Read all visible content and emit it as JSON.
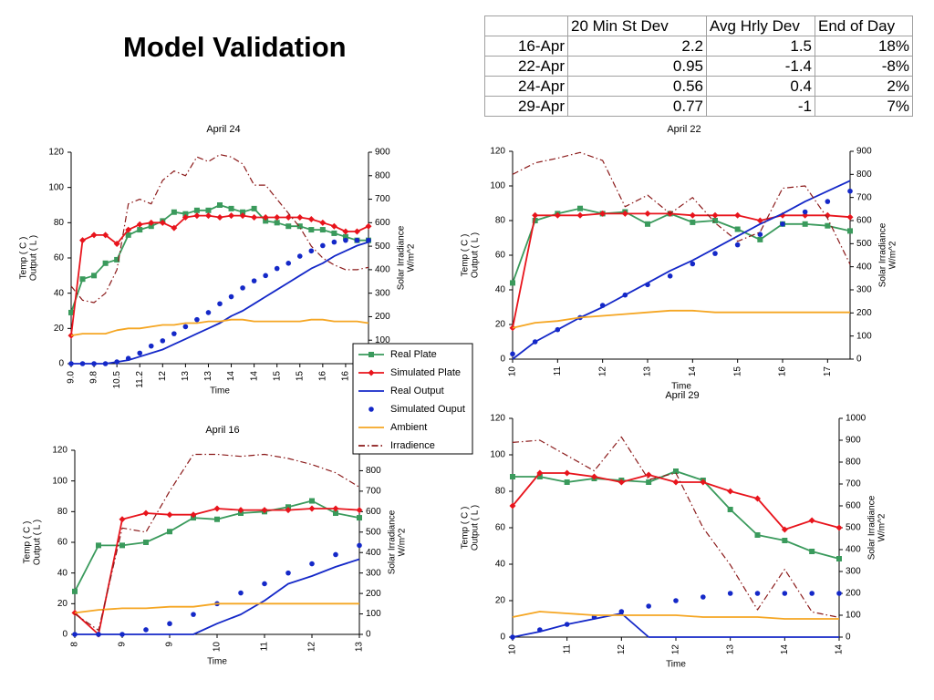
{
  "title": "Model Validation",
  "table": {
    "header": [
      "20 Min St Dev",
      "Avg Hrly Dev",
      "End of Day"
    ],
    "rows": [
      [
        "16-Apr",
        "2.2",
        "1.5",
        "18%"
      ],
      [
        "22-Apr",
        "0.95",
        "-1.4",
        "-8%"
      ],
      [
        "24-Apr",
        "0.56",
        "0.4",
        "2%"
      ],
      [
        "29-Apr",
        "0.77",
        "-1",
        "7%"
      ]
    ]
  },
  "legend": {
    "items": [
      {
        "name": "Real Plate",
        "color": "#3a9a5c",
        "marker": "square",
        "line": "solid"
      },
      {
        "name": "Simulated Plate",
        "color": "#e8141c",
        "marker": "diamond",
        "line": "solid"
      },
      {
        "name": "Real Output",
        "color": "#1428c8",
        "marker": "none",
        "line": "solid"
      },
      {
        "name": "Simulated Ouput",
        "color": "#1428c8",
        "marker": "dot",
        "line": "none"
      },
      {
        "name": "Ambient",
        "color": "#f5a623",
        "marker": "none",
        "line": "solid"
      },
      {
        "name": "Irradience",
        "color": "#8b1a1a",
        "marker": "none",
        "line": "dashdot"
      }
    ]
  },
  "chart_data": [
    {
      "type": "line",
      "title": "April 24",
      "xlabel": "Time",
      "ylabel": [
        "Temp ( C )",
        "Output ( L )"
      ],
      "y2label": [
        "Solar Irradiance",
        "W/m^2"
      ],
      "categories": [
        "9.0",
        null,
        "9.8",
        null,
        "10.5",
        null,
        "11.2",
        null,
        "12",
        null,
        "13",
        null,
        "13",
        null,
        "14",
        null,
        "14",
        null,
        "15",
        null,
        "15",
        null,
        "16",
        null,
        "16",
        null,
        null
      ],
      "ylim": [
        0,
        120
      ],
      "yticks": [
        0,
        20,
        40,
        60,
        80,
        100,
        120
      ],
      "y2lim": [
        0,
        900
      ],
      "y2ticks": [
        100,
        200,
        300,
        400,
        500,
        600,
        700,
        800,
        900
      ],
      "series": [
        {
          "values": [
            29,
            48,
            50,
            57,
            59,
            73,
            76,
            78,
            81,
            86,
            85,
            87,
            87,
            90,
            88,
            86,
            88,
            81,
            80,
            78,
            78,
            76,
            76,
            74,
            72,
            70,
            70
          ]
        },
        {
          "values": [
            16,
            70,
            73,
            73,
            68,
            76,
            79,
            80,
            80,
            77,
            83,
            84,
            84,
            83,
            84,
            84,
            83,
            83,
            83,
            83,
            83,
            82,
            80,
            78,
            75,
            75,
            78
          ]
        },
        {
          "values": [
            0,
            0,
            0,
            0,
            1,
            2,
            4,
            6,
            8,
            11,
            14,
            17,
            20,
            23,
            27,
            30,
            34,
            38,
            42,
            46,
            50,
            54,
            57,
            61,
            64,
            67,
            69
          ]
        },
        {
          "values": [
            0,
            0,
            0,
            0,
            1,
            3,
            6,
            10,
            13,
            17,
            21,
            25,
            29,
            34,
            38,
            43,
            47,
            50,
            54,
            57,
            61,
            64,
            67,
            69,
            70,
            70,
            70
          ]
        },
        {
          "values": [
            16,
            17,
            17,
            17,
            19,
            20,
            20,
            21,
            22,
            22,
            23,
            23,
            24,
            24,
            25,
            25,
            24,
            24,
            24,
            24,
            24,
            25,
            25,
            24,
            24,
            24,
            23
          ]
        },
        {
          "values": [
            330,
            270,
            260,
            300,
            400,
            680,
            700,
            680,
            780,
            820,
            800,
            880,
            860,
            890,
            880,
            850,
            760,
            760,
            700,
            640,
            580,
            500,
            450,
            420,
            400,
            400,
            410
          ],
          "axis": "y2"
        }
      ]
    },
    {
      "type": "line",
      "title": "April 22",
      "xlabel": "Time",
      "ylabel": [
        "Temp ( C )",
        "Output ( L )"
      ],
      "y2label": [
        "Solar Irradiance",
        "W/m^2"
      ],
      "categories": [
        "10",
        null,
        "11",
        null,
        "12",
        null,
        "13",
        null,
        "14",
        null,
        "15",
        null,
        "16",
        null,
        "17",
        null
      ],
      "ylim": [
        0,
        120
      ],
      "yticks": [
        0,
        20,
        40,
        60,
        80,
        100,
        120
      ],
      "y2lim": [
        0,
        900
      ],
      "y2ticks": [
        0,
        100,
        200,
        300,
        400,
        500,
        600,
        700,
        800,
        900
      ],
      "series": [
        {
          "values": [
            44,
            80,
            84,
            87,
            84,
            85,
            78,
            84,
            79,
            80,
            75,
            69,
            78,
            78,
            77,
            74
          ]
        },
        {
          "values": [
            18,
            83,
            83,
            83,
            84,
            84,
            84,
            84,
            83,
            83,
            83,
            80,
            83,
            83,
            83,
            82
          ]
        },
        {
          "values": [
            0,
            10,
            17,
            24,
            30,
            37,
            44,
            51,
            57,
            64,
            71,
            78,
            84,
            91,
            97,
            103
          ]
        },
        {
          "values": [
            3,
            10,
            17,
            24,
            31,
            37,
            43,
            48,
            55,
            61,
            66,
            72,
            78,
            85,
            91,
            97
          ]
        },
        {
          "values": [
            18,
            21,
            22,
            24,
            25,
            26,
            27,
            28,
            28,
            27,
            27,
            27,
            27,
            27,
            27,
            27
          ]
        },
        {
          "values": [
            800,
            850,
            870,
            895,
            860,
            660,
            710,
            630,
            700,
            590,
            510,
            550,
            740,
            750,
            610,
            410
          ],
          "axis": "y2"
        }
      ]
    },
    {
      "type": "line",
      "title": "April 16",
      "xlabel": "Time",
      "ylabel": [
        "Temp ( C )",
        "Output ( L )"
      ],
      "y2label": [
        "Solar Irradiance",
        "W/m^2"
      ],
      "categories": [
        "8",
        null,
        "9",
        null,
        "9",
        null,
        "10",
        null,
        "11",
        null,
        "12",
        null,
        "13"
      ],
      "ylim": [
        0,
        120
      ],
      "yticks": [
        0,
        20,
        40,
        60,
        80,
        100,
        120
      ],
      "y2lim": [
        0,
        900
      ],
      "y2ticks": [
        0,
        100,
        200,
        300,
        400,
        500,
        600,
        700,
        800
      ],
      "series": [
        {
          "values": [
            28,
            58,
            58,
            60,
            67,
            76,
            75,
            79,
            80,
            83,
            87,
            79,
            76
          ]
        },
        {
          "values": [
            14,
            0,
            75,
            79,
            78,
            78,
            82,
            81,
            81,
            81,
            82,
            82,
            81
          ]
        },
        {
          "values": [
            0,
            0,
            0,
            0,
            0,
            0,
            7,
            13,
            22,
            33,
            38,
            44,
            49
          ]
        },
        {
          "values": [
            0,
            0,
            0,
            3,
            7,
            13,
            20,
            27,
            33,
            40,
            46,
            52,
            58
          ]
        },
        {
          "values": [
            14,
            16,
            17,
            17,
            18,
            18,
            20,
            20,
            20,
            20,
            20,
            20,
            20
          ]
        },
        {
          "values": [
            100,
            20,
            520,
            500,
            700,
            880,
            880,
            870,
            880,
            860,
            830,
            790,
            720
          ],
          "axis": "y2"
        }
      ]
    },
    {
      "type": "line",
      "title": "April 29",
      "xlabel": "Time",
      "ylabel": [
        "Temp ( C )",
        "Output ( L )"
      ],
      "y2label": [
        "Solar Irradiance",
        "W/m^2"
      ],
      "categories": [
        "10",
        null,
        "11",
        null,
        "12",
        null,
        "12",
        null,
        "13",
        null,
        "14",
        null,
        "14"
      ],
      "ylim": [
        0,
        120
      ],
      "yticks": [
        0,
        20,
        40,
        60,
        80,
        100,
        120
      ],
      "y2lim": [
        0,
        1000
      ],
      "y2ticks": [
        0,
        100,
        200,
        300,
        400,
        500,
        600,
        700,
        800,
        900,
        1000
      ],
      "series": [
        {
          "values": [
            88,
            88,
            85,
            87,
            86,
            85,
            91,
            86,
            70,
            56,
            53,
            47,
            43
          ]
        },
        {
          "values": [
            72,
            90,
            90,
            88,
            85,
            89,
            85,
            85,
            80,
            76,
            59,
            64,
            60
          ]
        },
        {
          "values": [
            0,
            3,
            7,
            10,
            13,
            0,
            0,
            0,
            0,
            0,
            0,
            0,
            0
          ]
        },
        {
          "values": [
            0,
            4,
            7,
            11,
            14,
            17,
            20,
            22,
            24,
            24,
            24,
            24,
            24
          ]
        },
        {
          "values": [
            11,
            14,
            13,
            12,
            12,
            12,
            12,
            11,
            11,
            11,
            10,
            10,
            10
          ]
        },
        {
          "values": [
            890,
            900,
            830,
            760,
            915,
            720,
            750,
            500,
            330,
            125,
            310,
            115,
            90
          ],
          "axis": "y2"
        }
      ]
    }
  ]
}
